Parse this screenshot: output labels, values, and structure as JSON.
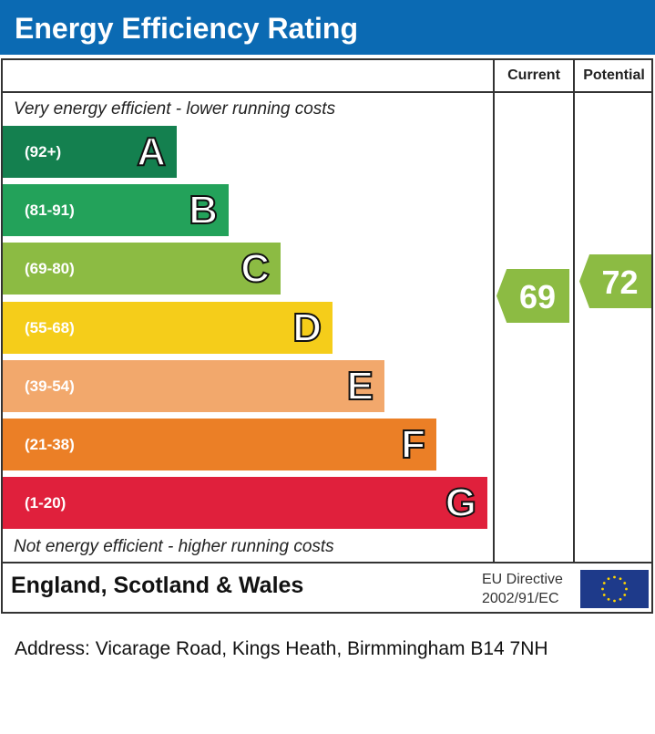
{
  "header": {
    "title": "Energy Efficiency Rating"
  },
  "columns": {
    "current": "Current",
    "potential": "Potential"
  },
  "captions": {
    "top": "Very energy efficient - lower running costs",
    "bottom": "Not energy efficient - higher running costs"
  },
  "chart_data": {
    "type": "bar",
    "categories": [
      "A",
      "B",
      "C",
      "D",
      "E",
      "F",
      "G"
    ],
    "ranges": [
      "(92+)",
      "(81-91)",
      "(69-80)",
      "(55-68)",
      "(39-54)",
      "(21-38)",
      "(1-20)"
    ],
    "colors": [
      "#14804f",
      "#23a25a",
      "#8cbb43",
      "#f5cd1a",
      "#f2a86c",
      "#eb7f26",
      "#e0203c"
    ],
    "current": {
      "value": "69",
      "band": "C",
      "color": "#8cbb43"
    },
    "potential": {
      "value": "72",
      "band": "C",
      "color": "#8cbb43"
    }
  },
  "footer": {
    "region": "England, Scotland & Wales",
    "directive_line1": "EU Directive",
    "directive_line2": "2002/91/EC",
    "flag": "eu-flag-icon"
  },
  "address": "Address: Vicarage Road, Kings Heath, Birmmingham B14 7NH"
}
